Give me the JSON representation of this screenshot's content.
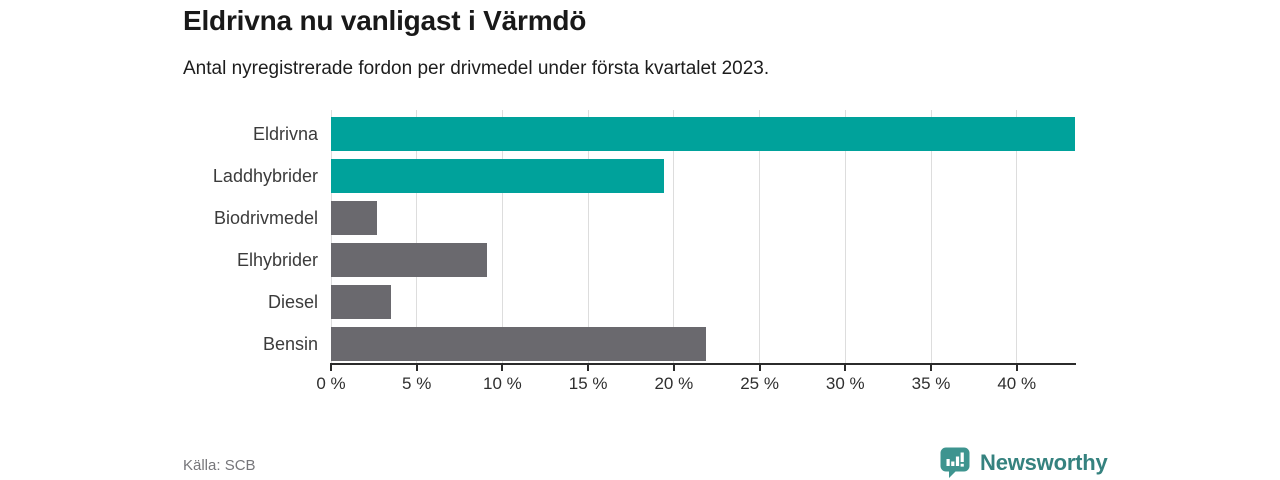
{
  "header": {
    "title": "Eldrivna nu vanligast i Värmdö",
    "subtitle": "Antal nyregistrerade fordon per drivmedel under första kvartalet 2023."
  },
  "chart_data": {
    "type": "bar",
    "orientation": "horizontal",
    "title": "Eldrivna nu vanligast i Värmdö",
    "xlabel": "",
    "ylabel": "",
    "unit": "%",
    "categories": [
      "Eldrivna",
      "Laddhybrider",
      "Biodrivmedel",
      "Elhybrider",
      "Diesel",
      "Bensin"
    ],
    "values": [
      43.4,
      19.4,
      2.7,
      9.1,
      3.5,
      21.9
    ],
    "bar_colors": [
      "#00A29B",
      "#00A29B",
      "#6A696E",
      "#6A696E",
      "#6A696E",
      "#6A696E"
    ],
    "xlim": [
      0,
      43.4
    ],
    "x_ticks": [
      {
        "value": 0,
        "label": "0 %"
      },
      {
        "value": 5,
        "label": "5 %"
      },
      {
        "value": 10,
        "label": "10 %"
      },
      {
        "value": 15,
        "label": "15 %"
      },
      {
        "value": 20,
        "label": "20 %"
      },
      {
        "value": 25,
        "label": "25 %"
      },
      {
        "value": 30,
        "label": "30 %"
      },
      {
        "value": 35,
        "label": "35 %"
      },
      {
        "value": 40,
        "label": "40 %"
      }
    ],
    "grid": true,
    "legend": false
  },
  "footer": {
    "source": "Källa: SCB",
    "brand": "Newsworthy"
  },
  "colors": {
    "accent_teal": "#00A29B",
    "neutral_gray": "#6A696E",
    "gridline": "#DDDDDD",
    "axis": "#2B2B2B",
    "brand_text": "#35827F",
    "brand_icon": "#3E948F",
    "background": "#FFFFFF"
  },
  "icons": {
    "brand_logo": "bar-chart-speech-bubble-icon"
  }
}
